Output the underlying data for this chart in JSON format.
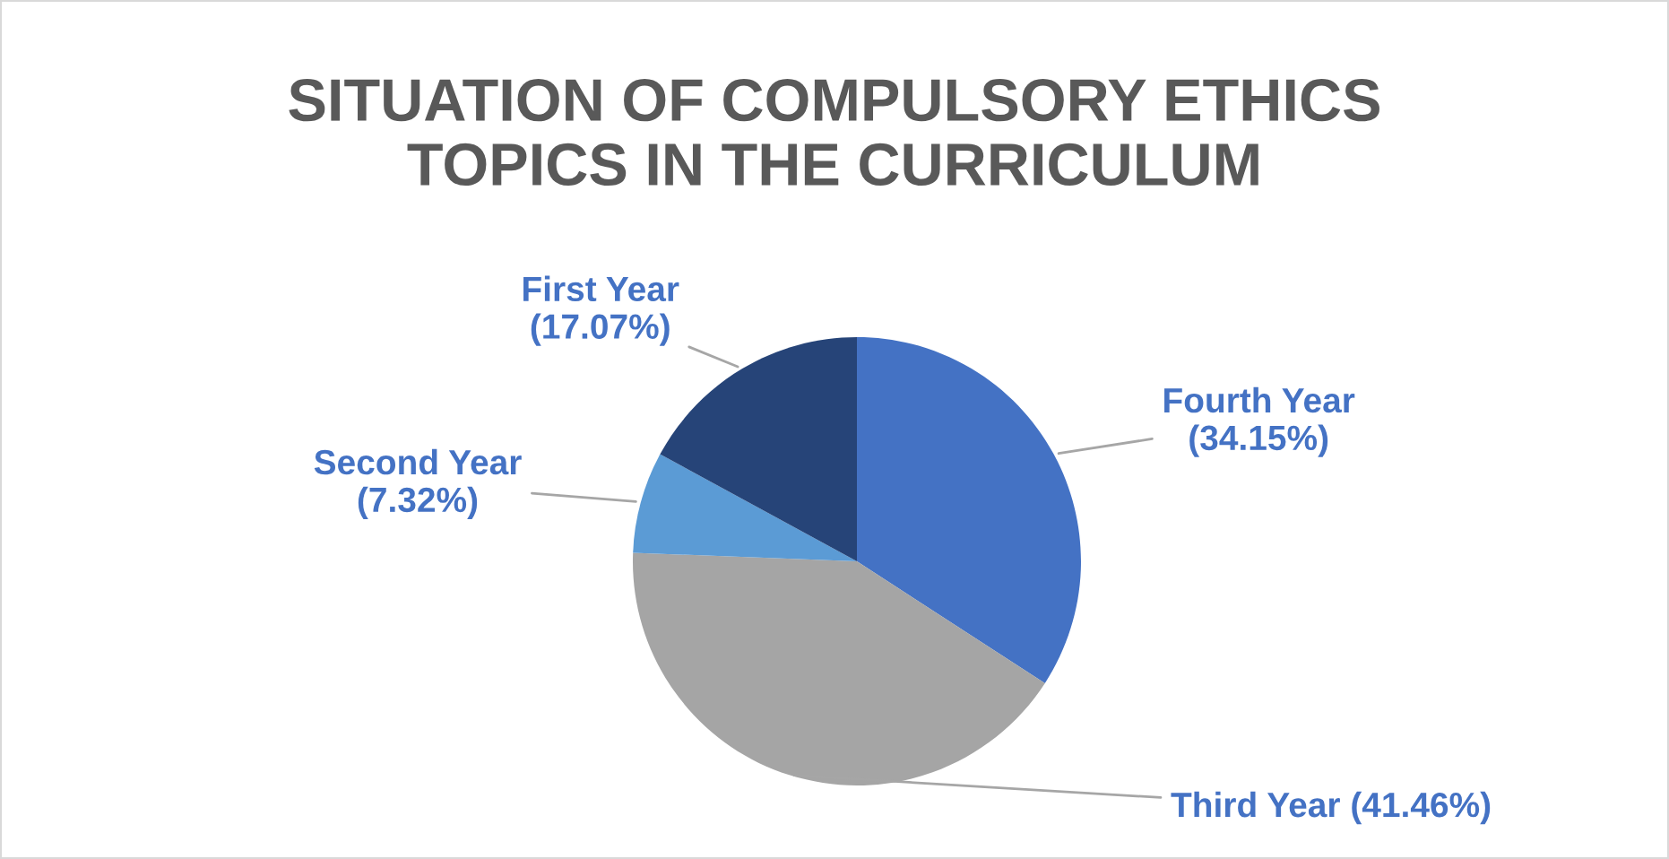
{
  "chart_data": {
    "type": "pie",
    "title": "SITUATION OF COMPULSORY ETHICS\nTOPICS IN THE CURRICULUM",
    "categories": [
      "Fourth Year",
      "Third Year",
      "Second Year",
      "First Year"
    ],
    "values": [
      34.15,
      41.46,
      7.32,
      17.07
    ],
    "colors": [
      "#4472c4",
      "#a5a5a5",
      "#5b9bd5",
      "#264478"
    ],
    "value_labels": [
      "(34.15%)",
      "(41.46%)",
      "(7.32%)",
      "(17.07%)"
    ]
  }
}
